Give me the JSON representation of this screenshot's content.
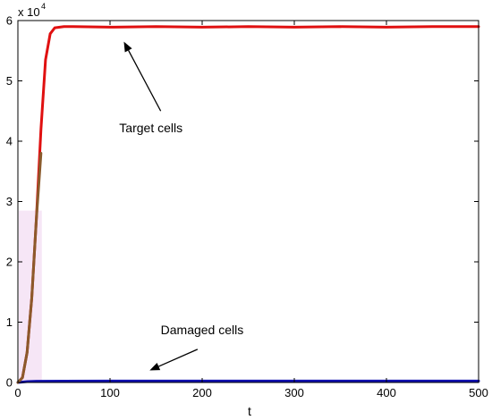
{
  "chart_data": {
    "type": "line",
    "xlabel": "t",
    "ylabel": "",
    "xlim": [
      0,
      500
    ],
    "ylim": [
      0,
      60000
    ],
    "x_ticks": [
      0,
      100,
      200,
      300,
      400,
      500
    ],
    "y_ticks": [
      0,
      10000,
      20000,
      30000,
      40000,
      50000,
      60000
    ],
    "y_tick_labels": [
      "0",
      "1",
      "2",
      "3",
      "4",
      "5",
      "6"
    ],
    "y_multiplier": {
      "base": "x 10",
      "power": "4"
    },
    "grid": false,
    "series": [
      {
        "color": "#e01010",
        "x": [
          0,
          5,
          10,
          15,
          20,
          25,
          30,
          35,
          40,
          50,
          60,
          100,
          150,
          200,
          250,
          300,
          350,
          400,
          450,
          500
        ],
        "y": [
          0,
          800,
          5000,
          14000,
          27000,
          42000,
          53500,
          57800,
          58800,
          59000,
          59000,
          58900,
          59000,
          58900,
          59000,
          58900,
          59000,
          58900,
          59000,
          59000
        ]
      },
      {
        "color": "#1010b0",
        "x": [
          0,
          10,
          20,
          50,
          100,
          200,
          300,
          400,
          500
        ],
        "y": [
          0,
          150,
          200,
          220,
          230,
          230,
          230,
          230,
          230
        ]
      },
      {
        "color": "#8b5a2b",
        "x": [
          0,
          5,
          10,
          15,
          20,
          25
        ],
        "y": [
          0,
          800,
          5000,
          14000,
          27000,
          38000
        ]
      }
    ],
    "annotations": [
      {
        "text": "Target cells",
        "text_x": 110,
        "text_y": 41500,
        "arrow_from": [
          155,
          45000
        ],
        "arrow_to": [
          115,
          56500
        ]
      },
      {
        "text": "Damaged cells",
        "text_x": 155,
        "text_y": 8000,
        "arrow_from": [
          195,
          5500
        ],
        "arrow_to": [
          143,
          2000
        ]
      }
    ]
  }
}
